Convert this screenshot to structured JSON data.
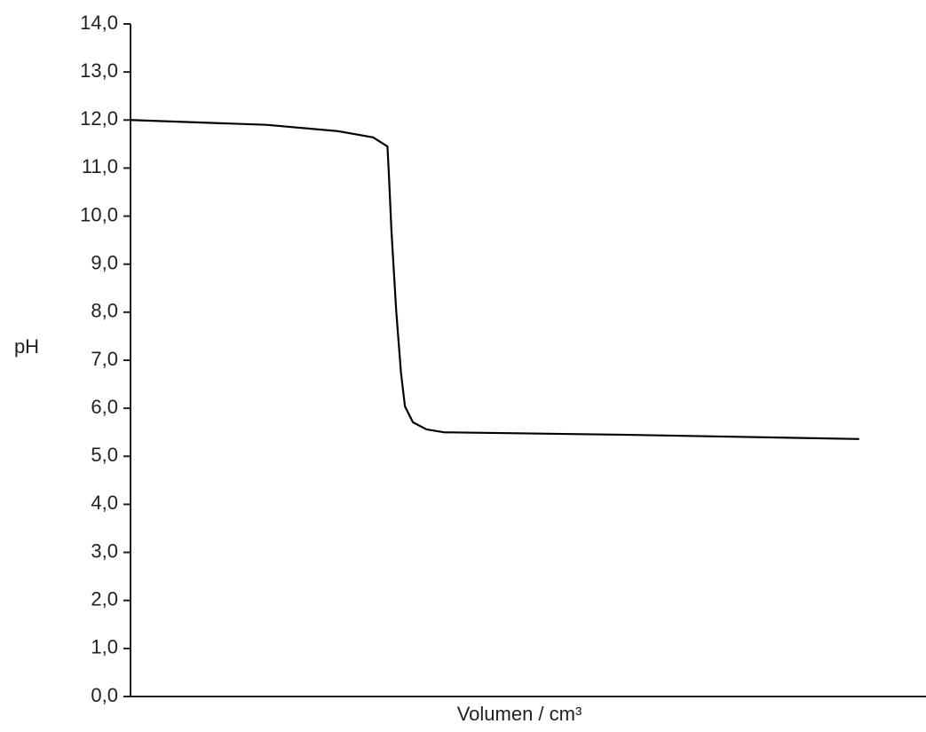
{
  "chart_data": {
    "type": "line",
    "ylabel": "pH",
    "xlabel": "Volumen / cm³",
    "x": [
      0,
      17.1,
      26,
      30.5,
      32.3,
      32.5,
      32.8,
      33.4,
      34.0,
      34.5,
      35.5,
      37.2,
      39.4,
      61.7,
      91.6
    ],
    "values": [
      12.0,
      11.9,
      11.77,
      11.64,
      11.45,
      10.8,
      9.7,
      8.03,
      6.74,
      6.04,
      5.71,
      5.56,
      5.5,
      5.45,
      5.36
    ],
    "color": "#000000",
    "xlim": [
      0,
      100
    ],
    "ylim": [
      0,
      14
    ],
    "yticks": [
      {
        "value": 0,
        "label": "0,0"
      },
      {
        "value": 1,
        "label": "1,0"
      },
      {
        "value": 2,
        "label": "2,0"
      },
      {
        "value": 3,
        "label": "3,0"
      },
      {
        "value": 4,
        "label": "4,0"
      },
      {
        "value": 5,
        "label": "5,0"
      },
      {
        "value": 6,
        "label": "6,0"
      },
      {
        "value": 7,
        "label": "7,0"
      },
      {
        "value": 8,
        "label": "8,0"
      },
      {
        "value": 9,
        "label": "9,0"
      },
      {
        "value": 10,
        "label": "10,0"
      },
      {
        "value": 11,
        "label": "11,0"
      },
      {
        "value": 12,
        "label": "12,0"
      },
      {
        "value": 13,
        "label": "13,0"
      },
      {
        "value": 14,
        "label": "14,0"
      }
    ]
  }
}
